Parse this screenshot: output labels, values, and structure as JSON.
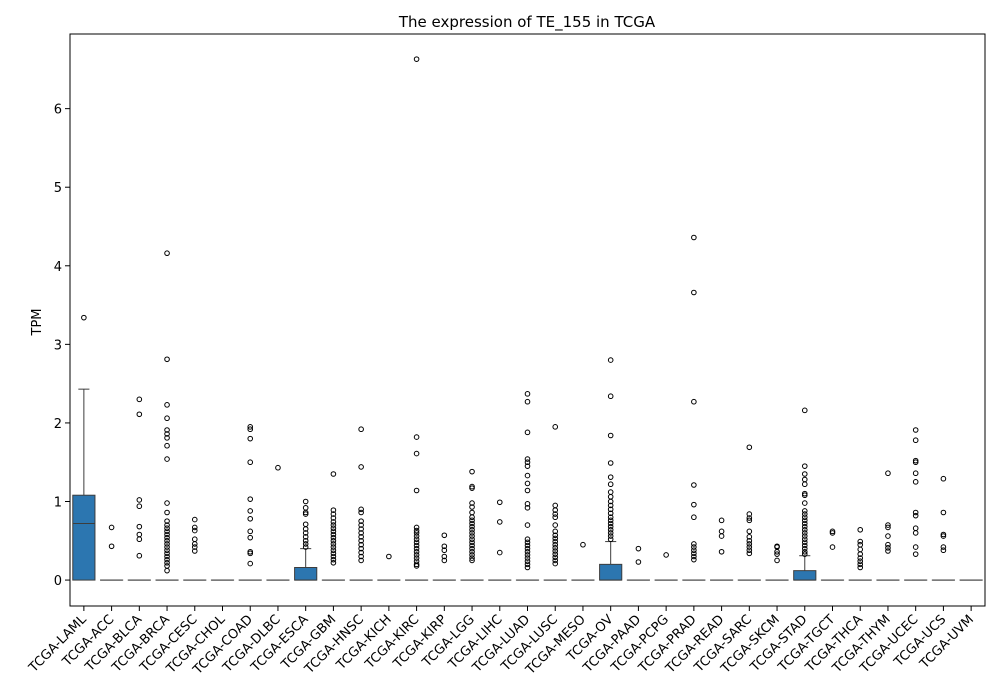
{
  "chart_data": {
    "type": "box",
    "title": "The expression of TE_155 in TCGA",
    "xlabel": "",
    "ylabel": "TPM",
    "ylim": [
      -0.33,
      6.95
    ],
    "yticks": [
      0,
      1,
      2,
      3,
      4,
      5,
      6
    ],
    "grid": false,
    "box_color": "#2c76b0",
    "categories": [
      "TCGA-LAML",
      "TCGA-ACC",
      "TCGA-BLCA",
      "TCGA-BRCA",
      "TCGA-CESC",
      "TCGA-CHOL",
      "TCGA-COAD",
      "TCGA-DLBC",
      "TCGA-ESCA",
      "TCGA-GBM",
      "TCGA-HNSC",
      "TCGA-KICH",
      "TCGA-KIRC",
      "TCGA-KIRP",
      "TCGA-LGG",
      "TCGA-LIHC",
      "TCGA-LUAD",
      "TCGA-LUSC",
      "TCGA-MESO",
      "TCGA-OV",
      "TCGA-PAAD",
      "TCGA-PCPG",
      "TCGA-PRAD",
      "TCGA-READ",
      "TCGA-SARC",
      "TCGA-SKCM",
      "TCGA-STAD",
      "TCGA-TGCT",
      "TCGA-THCA",
      "TCGA-THYM",
      "TCGA-UCEC",
      "TCGA-UCS",
      "TCGA-UVM"
    ],
    "boxes": [
      {
        "q1": 0,
        "median": 0.72,
        "q3": 1.08,
        "whislo": 0,
        "whishi": 2.43,
        "fliers": [
          3.34
        ]
      },
      {
        "q1": 0,
        "median": 0,
        "q3": 0,
        "whislo": 0,
        "whishi": 0,
        "fliers": [
          0.67,
          0.43
        ]
      },
      {
        "q1": 0,
        "median": 0,
        "q3": 0,
        "whislo": 0,
        "whishi": 0,
        "fliers": [
          2.3,
          2.11,
          1.02,
          0.94,
          0.68,
          0.58,
          0.52,
          0.31
        ]
      },
      {
        "q1": 0,
        "median": 0,
        "q3": 0,
        "whislo": 0,
        "whishi": 0,
        "fliers": [
          4.16,
          2.81,
          2.23,
          2.06,
          1.91,
          1.86,
          1.81,
          1.71,
          1.54,
          0.98,
          0.86,
          0.75,
          0.7,
          0.66,
          0.62,
          0.58,
          0.54,
          0.5,
          0.46,
          0.42,
          0.38,
          0.34,
          0.3,
          0.26,
          0.22,
          0.18,
          0.12
        ]
      },
      {
        "q1": 0,
        "median": 0,
        "q3": 0,
        "whislo": 0,
        "whishi": 0,
        "fliers": [
          0.77,
          0.67,
          0.63,
          0.52,
          0.46,
          0.42,
          0.37
        ]
      },
      {
        "q1": 0,
        "median": 0,
        "q3": 0,
        "whislo": 0,
        "whishi": 0,
        "fliers": []
      },
      {
        "q1": 0,
        "median": 0,
        "q3": 0,
        "whislo": 0,
        "whishi": 0,
        "fliers": [
          1.95,
          1.92,
          1.8,
          1.5,
          1.03,
          0.88,
          0.78,
          0.62,
          0.54,
          0.36,
          0.34,
          0.21
        ]
      },
      {
        "q1": 0,
        "median": 0,
        "q3": 0,
        "whislo": 0,
        "whishi": 0,
        "fliers": [
          1.43
        ]
      },
      {
        "q1": 0,
        "median": 0,
        "q3": 0.16,
        "whislo": 0,
        "whishi": 0.4,
        "fliers": [
          1.0,
          0.92,
          0.86,
          0.84,
          0.71,
          0.65,
          0.6,
          0.55,
          0.5,
          0.46,
          0.42
        ]
      },
      {
        "q1": 0,
        "median": 0,
        "q3": 0,
        "whislo": 0,
        "whishi": 0,
        "fliers": [
          1.35,
          0.89,
          0.84,
          0.79,
          0.74,
          0.7,
          0.66,
          0.62,
          0.58,
          0.54,
          0.5,
          0.46,
          0.42,
          0.38,
          0.34,
          0.3,
          0.26,
          0.22
        ]
      },
      {
        "q1": 0,
        "median": 0,
        "q3": 0,
        "whislo": 0,
        "whishi": 0,
        "fliers": [
          1.92,
          1.44,
          0.9,
          0.86,
          0.75,
          0.7,
          0.65,
          0.6,
          0.55,
          0.5,
          0.45,
          0.4,
          0.35,
          0.3,
          0.25
        ]
      },
      {
        "q1": 0,
        "median": 0,
        "q3": 0,
        "whislo": 0,
        "whishi": 0,
        "fliers": [
          0.3
        ]
      },
      {
        "q1": 0,
        "median": 0,
        "q3": 0,
        "whislo": 0,
        "whishi": 0,
        "fliers": [
          6.63,
          1.82,
          1.61,
          1.14,
          0.67,
          0.63,
          0.6,
          0.56,
          0.52,
          0.48,
          0.44,
          0.4,
          0.36,
          0.32,
          0.28,
          0.24,
          0.2,
          0.18
        ]
      },
      {
        "q1": 0,
        "median": 0,
        "q3": 0,
        "whislo": 0,
        "whishi": 0,
        "fliers": [
          0.57,
          0.43,
          0.38,
          0.3,
          0.25
        ]
      },
      {
        "q1": 0,
        "median": 0,
        "q3": 0,
        "whislo": 0,
        "whishi": 0,
        "fliers": [
          1.38,
          1.19,
          1.17,
          0.98,
          0.93,
          0.86,
          0.8,
          0.76,
          0.72,
          0.68,
          0.64,
          0.6,
          0.56,
          0.52,
          0.48,
          0.44,
          0.4,
          0.36,
          0.32,
          0.28,
          0.25
        ]
      },
      {
        "q1": 0,
        "median": 0,
        "q3": 0,
        "whislo": 0,
        "whishi": 0,
        "fliers": [
          0.99,
          0.74,
          0.35
        ]
      },
      {
        "q1": 0,
        "median": 0,
        "q3": 0,
        "whislo": 0,
        "whishi": 0,
        "fliers": [
          2.37,
          2.27,
          1.88,
          1.54,
          1.5,
          1.45,
          1.33,
          1.23,
          1.14,
          0.97,
          0.92,
          0.7,
          0.52,
          0.48,
          0.44,
          0.4,
          0.36,
          0.32,
          0.28,
          0.24,
          0.2,
          0.16
        ]
      },
      {
        "q1": 0,
        "median": 0,
        "q3": 0,
        "whislo": 0,
        "whishi": 0,
        "fliers": [
          1.95,
          0.95,
          0.89,
          0.84,
          0.8,
          0.7,
          0.62,
          0.57,
          0.53,
          0.49,
          0.45,
          0.41,
          0.37,
          0.33,
          0.29,
          0.25,
          0.21
        ]
      },
      {
        "q1": 0,
        "median": 0,
        "q3": 0,
        "whislo": 0,
        "whishi": 0,
        "fliers": [
          0.45
        ]
      },
      {
        "q1": 0,
        "median": 0,
        "q3": 0.2,
        "whislo": 0,
        "whishi": 0.49,
        "fliers": [
          2.8,
          2.34,
          1.84,
          1.49,
          1.31,
          1.22,
          1.12,
          1.06,
          1.0,
          0.95,
          0.9,
          0.85,
          0.8,
          0.76,
          0.72,
          0.68,
          0.64,
          0.6,
          0.56,
          0.52
        ]
      },
      {
        "q1": 0,
        "median": 0,
        "q3": 0,
        "whislo": 0,
        "whishi": 0,
        "fliers": [
          0.4,
          0.23
        ]
      },
      {
        "q1": 0,
        "median": 0,
        "q3": 0,
        "whislo": 0,
        "whishi": 0,
        "fliers": [
          0.32
        ]
      },
      {
        "q1": 0,
        "median": 0,
        "q3": 0,
        "whislo": 0,
        "whishi": 0,
        "fliers": [
          4.36,
          3.66,
          2.27,
          1.21,
          0.96,
          0.8,
          0.46,
          0.42,
          0.38,
          0.34,
          0.3,
          0.26
        ]
      },
      {
        "q1": 0,
        "median": 0,
        "q3": 0,
        "whislo": 0,
        "whishi": 0,
        "fliers": [
          0.76,
          0.62,
          0.56,
          0.36
        ]
      },
      {
        "q1": 0,
        "median": 0,
        "q3": 0,
        "whislo": 0,
        "whishi": 0,
        "fliers": [
          1.69,
          0.84,
          0.79,
          0.76,
          0.62,
          0.55,
          0.5,
          0.46,
          0.42,
          0.38,
          0.34
        ]
      },
      {
        "q1": 0,
        "median": 0,
        "q3": 0,
        "whislo": 0,
        "whishi": 0,
        "fliers": [
          0.43,
          0.42,
          0.36,
          0.33,
          0.25
        ]
      },
      {
        "q1": 0,
        "median": 0,
        "q3": 0.12,
        "whislo": 0,
        "whishi": 0.31,
        "fliers": [
          2.16,
          1.45,
          1.35,
          1.28,
          1.22,
          1.1,
          1.08,
          0.98,
          0.88,
          0.84,
          0.8,
          0.76,
          0.72,
          0.68,
          0.64,
          0.6,
          0.56,
          0.52,
          0.48,
          0.44,
          0.4,
          0.36,
          0.33
        ]
      },
      {
        "q1": 0,
        "median": 0,
        "q3": 0,
        "whislo": 0,
        "whishi": 0,
        "fliers": [
          0.62,
          0.6,
          0.42
        ]
      },
      {
        "q1": 0,
        "median": 0,
        "q3": 0,
        "whislo": 0,
        "whishi": 0,
        "fliers": [
          0.64,
          0.49,
          0.45,
          0.39,
          0.33,
          0.28,
          0.24,
          0.2,
          0.16
        ]
      },
      {
        "q1": 0,
        "median": 0,
        "q3": 0,
        "whislo": 0,
        "whishi": 0,
        "fliers": [
          1.36,
          0.7,
          0.67,
          0.56,
          0.45,
          0.41,
          0.37
        ]
      },
      {
        "q1": 0,
        "median": 0,
        "q3": 0,
        "whislo": 0,
        "whishi": 0,
        "fliers": [
          1.91,
          1.78,
          1.52,
          1.5,
          1.36,
          1.25,
          0.86,
          0.82,
          0.66,
          0.6,
          0.42,
          0.33
        ]
      },
      {
        "q1": 0,
        "median": 0,
        "q3": 0,
        "whislo": 0,
        "whishi": 0,
        "fliers": [
          1.29,
          0.86,
          0.58,
          0.56,
          0.42,
          0.38
        ]
      },
      {
        "q1": 0,
        "median": 0,
        "q3": 0,
        "whislo": 0,
        "whishi": 0,
        "fliers": []
      }
    ]
  }
}
